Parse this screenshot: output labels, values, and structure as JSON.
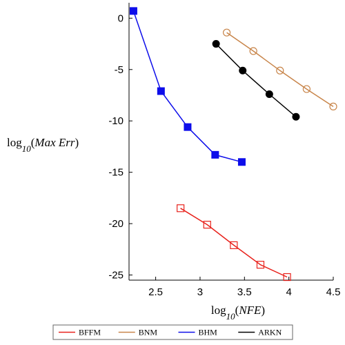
{
  "chart_data": {
    "type": "line",
    "xlabel": {
      "prefix": "log",
      "subscript": "10",
      "arg": "NFE"
    },
    "ylabel": {
      "prefix": "log",
      "subscript": "10",
      "arg": "Max Err"
    },
    "xlim": [
      2.2,
      4.5
    ],
    "ylim": [
      -25.5,
      1.5
    ],
    "xticks": [
      {
        "value": 2.5,
        "label": "2.5"
      },
      {
        "value": 3,
        "label": "3"
      },
      {
        "value": 3.5,
        "label": "3.5"
      },
      {
        "value": 4,
        "label": "4"
      },
      {
        "value": 4.5,
        "label": "4.5"
      }
    ],
    "yticks": [
      {
        "value": 0,
        "label": "0"
      },
      {
        "value": -5,
        "label": "-5"
      },
      {
        "value": -10,
        "label": "-10"
      },
      {
        "value": -15,
        "label": "-15"
      },
      {
        "value": -20,
        "label": "-20"
      },
      {
        "value": -25,
        "label": "-25"
      }
    ],
    "grid": false,
    "legend_position": "bottom",
    "series": [
      {
        "name": "BFFM",
        "color": "#e8211b",
        "marker": "open-square",
        "x": [
          2.78,
          3.08,
          3.38,
          3.68,
          3.98
        ],
        "y": [
          -18.5,
          -20.1,
          -22.1,
          -24.0,
          -25.2
        ]
      },
      {
        "name": "BNM",
        "color": "#c8854a",
        "marker": "open-circle",
        "x": [
          3.3,
          3.6,
          3.9,
          4.2,
          4.5
        ],
        "y": [
          -1.4,
          -3.2,
          -5.1,
          -6.9,
          -8.6
        ]
      },
      {
        "name": "BHM",
        "color": "#0d0dea",
        "marker": "filled-square",
        "x": [
          2.25,
          2.56,
          2.86,
          3.17,
          3.47
        ],
        "y": [
          0.7,
          -7.1,
          -10.6,
          -13.3,
          -14.0
        ]
      },
      {
        "name": "ARKN",
        "color": "#000000",
        "marker": "filled-circle",
        "x": [
          3.18,
          3.48,
          3.78,
          4.08
        ],
        "y": [
          -2.5,
          -5.1,
          -7.4,
          -9.6
        ]
      }
    ]
  }
}
